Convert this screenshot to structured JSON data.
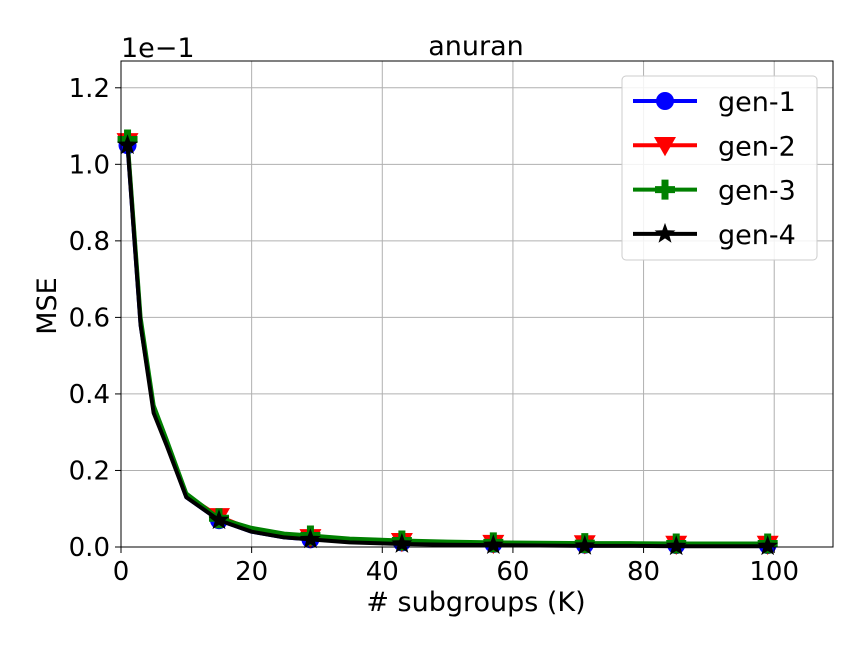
{
  "chart_data": {
    "type": "line",
    "title": "anuran",
    "xlabel": "# subgroups (K)",
    "ylabel": "MSE",
    "offset_label": "1e−1",
    "xlim": [
      0,
      109
    ],
    "ylim": [
      0,
      1.27
    ],
    "xticks": [
      0,
      20,
      40,
      60,
      80,
      100
    ],
    "xtick_labels": [
      "0",
      "20",
      "40",
      "60",
      "80",
      "100"
    ],
    "yticks": [
      0.0,
      0.2,
      0.4,
      0.6,
      0.8,
      1.0,
      1.2
    ],
    "ytick_labels": [
      "0.0",
      "0.2",
      "0.4",
      "0.6",
      "0.8",
      "1.0",
      "1.2"
    ],
    "grid": true,
    "legend_position": "top-right",
    "markers_x": [
      1,
      15,
      29,
      43,
      57,
      71,
      85,
      99
    ],
    "series": [
      {
        "name": "gen-1",
        "color": "#0000ff",
        "marker": "circle",
        "x": [
          1,
          3,
          5,
          7,
          10,
          15,
          20,
          25,
          29,
          35,
          43,
          50,
          57,
          64,
          71,
          78,
          85,
          92,
          99
        ],
        "y": [
          1.05,
          0.58,
          0.36,
          0.27,
          0.13,
          0.07,
          0.04,
          0.025,
          0.02,
          0.015,
          0.012,
          0.009,
          0.008,
          0.007,
          0.006,
          0.006,
          0.005,
          0.005,
          0.005
        ],
        "marker_y": [
          1.05,
          0.07,
          0.02,
          0.012,
          0.008,
          0.006,
          0.005,
          0.005
        ]
      },
      {
        "name": "gen-2",
        "color": "#ff0000",
        "marker": "triangle-down",
        "x": [
          1,
          3,
          5,
          7,
          10,
          15,
          20,
          25,
          29,
          35,
          43,
          50,
          57,
          64,
          71,
          78,
          85,
          92,
          99
        ],
        "y": [
          1.06,
          0.59,
          0.36,
          0.27,
          0.135,
          0.08,
          0.045,
          0.032,
          0.025,
          0.02,
          0.015,
          0.012,
          0.01,
          0.01,
          0.009,
          0.009,
          0.008,
          0.008,
          0.008
        ],
        "marker_y": [
          1.06,
          0.08,
          0.025,
          0.015,
          0.01,
          0.009,
          0.008,
          0.008
        ]
      },
      {
        "name": "gen-3",
        "color": "#008000",
        "marker": "plus",
        "x": [
          1,
          3,
          5,
          7,
          10,
          15,
          20,
          25,
          29,
          35,
          43,
          50,
          57,
          64,
          71,
          78,
          85,
          92,
          99
        ],
        "y": [
          1.065,
          0.6,
          0.37,
          0.28,
          0.14,
          0.075,
          0.05,
          0.035,
          0.03,
          0.022,
          0.017,
          0.014,
          0.012,
          0.011,
          0.01,
          0.01,
          0.009,
          0.009,
          0.009
        ],
        "marker_y": [
          1.065,
          0.075,
          0.03,
          0.017,
          0.012,
          0.01,
          0.009,
          0.009
        ]
      },
      {
        "name": "gen-4",
        "color": "#000000",
        "marker": "star",
        "x": [
          1,
          3,
          5,
          7,
          10,
          15,
          20,
          25,
          29,
          35,
          43,
          50,
          57,
          64,
          71,
          78,
          85,
          92,
          99
        ],
        "y": [
          1.05,
          0.58,
          0.35,
          0.265,
          0.13,
          0.07,
          0.04,
          0.025,
          0.02,
          0.012,
          0.008,
          0.006,
          0.005,
          0.004,
          0.003,
          0.003,
          0.002,
          0.002,
          0.002
        ],
        "marker_y": [
          1.05,
          0.07,
          0.02,
          0.008,
          0.005,
          0.003,
          0.002,
          0.002
        ]
      }
    ]
  }
}
